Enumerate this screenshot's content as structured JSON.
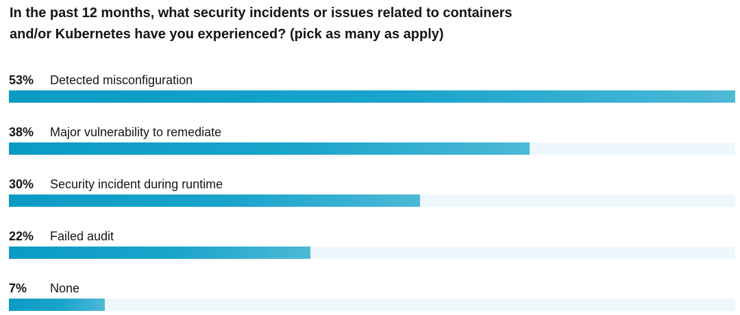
{
  "chart_data": {
    "type": "bar",
    "orientation": "horizontal",
    "title_lines": [
      "In the past 12 months, what security incidents or issues related to containers",
      "and/or Kubernetes have you experienced? (pick as many as apply)"
    ],
    "categories": [
      "Detected misconfiguration",
      "Major vulnerability to remediate",
      "Security incident during runtime",
      "Failed audit",
      "None"
    ],
    "values": [
      53,
      38,
      30,
      22,
      7
    ],
    "value_labels": [
      "53%",
      "38%",
      "30%",
      "22%",
      "7%"
    ],
    "unit": "%",
    "xlim": [
      0,
      53
    ],
    "xlabel": "",
    "ylabel": "",
    "grid": false,
    "legend": "none",
    "colors": {
      "bar_start": "#0a9bc4",
      "bar_end": "#4db9d6",
      "track": "#eef7fb",
      "text": "#151515"
    }
  }
}
